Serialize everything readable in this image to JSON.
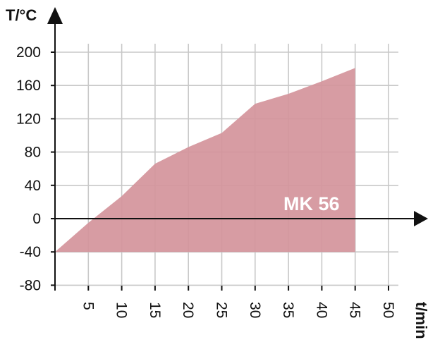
{
  "chart_data": {
    "type": "area",
    "ylabel": "T/°C",
    "xlabel": "t/min",
    "xlim": [
      0,
      50
    ],
    "ylim": [
      -80,
      200
    ],
    "grid": true,
    "x_ticks": [
      {
        "value": 5,
        "label": "5"
      },
      {
        "value": 10,
        "label": "10"
      },
      {
        "value": 15,
        "label": "15"
      },
      {
        "value": 20,
        "label": "20"
      },
      {
        "value": 25,
        "label": "25"
      },
      {
        "value": 30,
        "label": "30"
      },
      {
        "value": 35,
        "label": "35"
      },
      {
        "value": 40,
        "label": "40"
      },
      {
        "value": 45,
        "label": "45"
      },
      {
        "value": 50,
        "label": "50"
      }
    ],
    "y_ticks": [
      {
        "value": 200,
        "label": "200"
      },
      {
        "value": 160,
        "label": "160"
      },
      {
        "value": 120,
        "label": "120"
      },
      {
        "value": 80,
        "label": "80"
      },
      {
        "value": 40,
        "label": "40"
      },
      {
        "value": 0,
        "label": "0"
      },
      {
        "value": -40,
        "label": "-40"
      },
      {
        "value": -80,
        "label": "-80"
      }
    ],
    "series": [
      {
        "name": "MK 56",
        "color": "#d4949b",
        "baseline": -40,
        "x": [
          0,
          5,
          10,
          15,
          20,
          25,
          30,
          35,
          40,
          45
        ],
        "y": [
          -40,
          -5,
          27,
          66,
          86,
          103,
          138,
          150,
          165,
          181
        ]
      }
    ]
  }
}
